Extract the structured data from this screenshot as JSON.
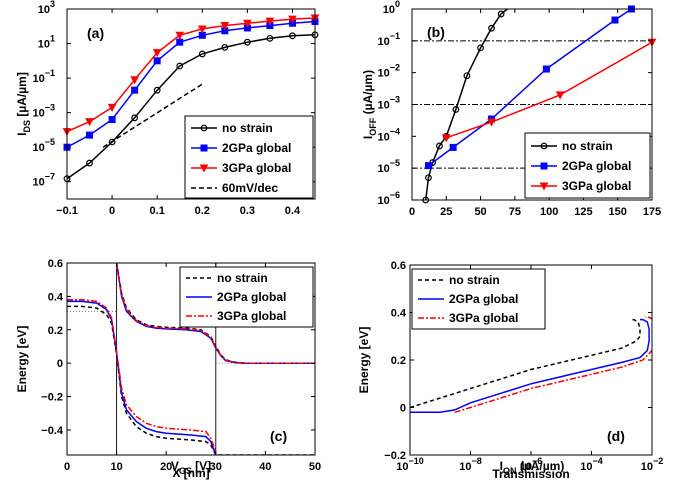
{
  "chart_data": [
    {
      "panel": "(a)",
      "type": "line",
      "xlabel": "V_GS [V]",
      "ylabel": "I_DS [µA/µm]",
      "xscale": "linear",
      "yscale": "log",
      "xlim": [
        -0.1,
        0.45
      ],
      "ylim": [
        1e-08,
        1000
      ],
      "xticks": [
        -0.1,
        0,
        0.1,
        0.2,
        0.3,
        0.4
      ],
      "xtick_labels": [
        "−0.1",
        "0",
        "0.1",
        "0.2",
        "0.3",
        "0.4"
      ],
      "yticks": [
        1e-07,
        1e-05,
        0.001,
        0.1,
        10,
        1000
      ],
      "ytick_labels": [
        [
          "10",
          "−7"
        ],
        [
          "10",
          "−5"
        ],
        [
          "10",
          "−3"
        ],
        [
          "10",
          "−1"
        ],
        [
          "10",
          "1"
        ],
        [
          "10",
          "3"
        ]
      ],
      "legend": "bottom-right",
      "series": [
        {
          "name": "no strain",
          "color": "#000000",
          "marker": "circle",
          "dash": "",
          "x": [
            -0.1,
            -0.05,
            0,
            0.05,
            0.1,
            0.15,
            0.2,
            0.25,
            0.3,
            0.35,
            0.4,
            0.45
          ],
          "y": [
            1.5e-07,
            1.2e-06,
            2e-05,
            0.0005,
            0.02,
            0.5,
            2.5,
            6,
            12,
            20,
            28,
            32
          ]
        },
        {
          "name": "2GPa global",
          "color": "#0000ff",
          "marker": "square",
          "dash": "",
          "x": [
            -0.1,
            -0.05,
            0,
            0.05,
            0.1,
            0.15,
            0.2,
            0.25,
            0.3,
            0.35,
            0.4,
            0.45
          ],
          "y": [
            1e-05,
            5e-05,
            0.0004,
            0.02,
            1,
            12,
            30,
            55,
            80,
            110,
            150,
            190
          ]
        },
        {
          "name": "3GPa global",
          "color": "#ff0000",
          "marker": "triangle-down",
          "dash": "",
          "x": [
            -0.1,
            -0.05,
            0,
            0.05,
            0.1,
            0.15,
            0.2,
            0.25,
            0.3,
            0.35,
            0.4,
            0.45
          ],
          "y": [
            8e-05,
            0.0003,
            0.002,
            0.08,
            3,
            30,
            70,
            110,
            150,
            200,
            260,
            300
          ]
        },
        {
          "name": "60mV/dec",
          "color": "#000000",
          "marker": "",
          "dash": "5,3",
          "x": [
            -0.02,
            0.2
          ],
          "y": [
            1e-05,
            0.045
          ]
        }
      ]
    },
    {
      "panel": "(b)",
      "type": "line",
      "xlabel": "I_ON (µA/µm)",
      "ylabel": "I_OFF (µA/µm)",
      "xscale": "linear",
      "yscale": "log",
      "xlim": [
        0,
        175
      ],
      "ylim": [
        1e-06,
        1
      ],
      "xticks": [
        0,
        25,
        50,
        75,
        100,
        125,
        150,
        175
      ],
      "xtick_labels": [
        "0",
        "25",
        "50",
        "75",
        "100",
        "125",
        "150",
        "175"
      ],
      "yticks": [
        1e-06,
        1e-05,
        0.0001,
        0.001,
        0.01,
        0.1,
        1
      ],
      "ytick_labels": [
        [
          "10",
          "−6"
        ],
        [
          "10",
          "−5"
        ],
        [
          "10",
          "−4"
        ],
        [
          "10",
          "−3"
        ],
        [
          "10",
          "−2"
        ],
        [
          "10",
          "−1"
        ],
        [
          "10",
          "0"
        ]
      ],
      "legend": "bottom-right",
      "reference_lines": [
        1e-05,
        0.001,
        0.1
      ],
      "series": [
        {
          "name": "no strain",
          "color": "#000000",
          "marker": "circle",
          "dash": "",
          "x": [
            10,
            12,
            15,
            20,
            25,
            32,
            40,
            50,
            58,
            65,
            75
          ],
          "y": [
            1e-06,
            5e-06,
            1.5e-05,
            5e-05,
            0.0001,
            0.0007,
            0.008,
            0.06,
            0.25,
            0.7,
            1.5
          ]
        },
        {
          "name": "2GPa global",
          "color": "#0000ff",
          "marker": "square",
          "dash": "",
          "x": [
            12,
            30,
            58,
            98,
            148,
            160
          ],
          "y": [
            1.2e-05,
            4.5e-05,
            0.00035,
            0.013,
            0.45,
            1
          ]
        },
        {
          "name": "3GPa global",
          "color": "#ff0000",
          "marker": "triangle-down",
          "dash": "",
          "x": [
            25,
            58,
            108,
            175
          ],
          "y": [
            9e-05,
            0.00028,
            0.002,
            0.09
          ]
        }
      ]
    },
    {
      "panel": "(c)",
      "type": "line",
      "xlabel": "X [nm]",
      "ylabel": "Energy [eV]",
      "xscale": "linear",
      "yscale": "linear",
      "xlim": [
        0,
        50
      ],
      "ylim": [
        -0.55,
        0.6
      ],
      "xticks": [
        0,
        10,
        20,
        30,
        40,
        50
      ],
      "xtick_labels": [
        "0",
        "10",
        "20",
        "30",
        "40",
        "50"
      ],
      "yticks": [
        -0.4,
        -0.2,
        0,
        0.2,
        0.4,
        0.6
      ],
      "ytick_labels": [
        [
          "−0.4"
        ],
        [
          "−0.2"
        ],
        [
          "0"
        ],
        [
          "0.2"
        ],
        [
          "0.4"
        ],
        [
          "0.6"
        ]
      ],
      "legend": "top-right",
      "vertical_lines": [
        10,
        30
      ],
      "reference_segments": [
        {
          "x": [
            0,
            10
          ],
          "y": [
            0.31,
            0.31
          ]
        },
        {
          "x": [
            30,
            50
          ],
          "y": [
            0,
            0
          ]
        }
      ],
      "series": [
        {
          "name": "no strain",
          "color": "#000000",
          "marker": "",
          "dash": "4,3",
          "x": [
            0,
            3,
            6,
            8,
            9,
            10,
            11,
            12,
            14,
            16,
            18,
            20,
            25,
            28,
            29,
            30,
            31,
            32,
            34,
            36,
            40,
            50
          ],
          "y": [
            0.34,
            0.34,
            0.33,
            0.29,
            0.24,
            0.05,
            -0.2,
            -0.3,
            -0.38,
            -0.42,
            -0.44,
            -0.45,
            -0.46,
            -0.47,
            -0.49,
            -0.55,
            -0.55,
            -0.55,
            -0.55,
            -0.55,
            -0.55,
            -0.55
          ]
        },
        {
          "name": "2GPa global",
          "color": "#0000ff",
          "marker": "",
          "dash": "",
          "x": [
            0,
            3,
            6,
            8,
            9,
            10,
            11,
            12,
            14,
            16,
            18,
            20,
            25,
            28,
            29,
            30
          ],
          "y": [
            0.37,
            0.37,
            0.36,
            0.32,
            0.26,
            0.06,
            -0.18,
            -0.28,
            -0.35,
            -0.39,
            -0.41,
            -0.42,
            -0.43,
            -0.44,
            -0.47,
            -0.55
          ]
        },
        {
          "name": "3GPa global",
          "color": "#ff0000",
          "marker": "",
          "dash": "6,2,2,2",
          "x": [
            0,
            3,
            6,
            8,
            9,
            10,
            11,
            12,
            14,
            16,
            18,
            20,
            25,
            28,
            29,
            30
          ],
          "y": [
            0.38,
            0.38,
            0.37,
            0.33,
            0.27,
            0.07,
            -0.15,
            -0.25,
            -0.32,
            -0.36,
            -0.38,
            -0.39,
            -0.4,
            -0.41,
            -0.45,
            -0.53
          ]
        },
        {
          "name": "",
          "color": "#000000",
          "marker": "",
          "dash": "4,3",
          "x": [
            10,
            11,
            12,
            14,
            16,
            18,
            20,
            24,
            27,
            29,
            30,
            31,
            32,
            34,
            36,
            40,
            50
          ],
          "y": [
            0.6,
            0.42,
            0.33,
            0.26,
            0.23,
            0.22,
            0.215,
            0.21,
            0.2,
            0.16,
            0.1,
            0.05,
            0.02,
            0.005,
            0,
            0,
            0
          ]
        },
        {
          "name": "",
          "color": "#0000ff",
          "marker": "",
          "dash": "",
          "x": [
            10,
            11,
            12,
            14,
            16,
            18,
            20,
            24,
            27,
            29,
            30,
            31,
            32,
            34,
            36,
            40,
            50
          ],
          "y": [
            0.6,
            0.4,
            0.31,
            0.25,
            0.22,
            0.21,
            0.205,
            0.2,
            0.19,
            0.15,
            0.09,
            0.045,
            0.015,
            0.003,
            0,
            0,
            0
          ]
        },
        {
          "name": "",
          "color": "#ff0000",
          "marker": "",
          "dash": "6,2,2,2",
          "x": [
            10,
            11,
            12,
            14,
            16,
            18,
            20,
            24,
            27,
            29,
            30,
            31,
            32,
            34,
            36,
            40,
            50
          ],
          "y": [
            0.6,
            0.41,
            0.32,
            0.255,
            0.225,
            0.215,
            0.21,
            0.205,
            0.195,
            0.155,
            0.095,
            0.048,
            0.017,
            0.004,
            0,
            0,
            0
          ]
        }
      ]
    },
    {
      "panel": "(d)",
      "type": "line",
      "xlabel": "Transmission",
      "ylabel": "Energy [eV]",
      "xscale": "log",
      "yscale": "linear",
      "xlim": [
        1e-10,
        0.01
      ],
      "ylim": [
        -0.2,
        0.6
      ],
      "xticks": [
        1e-10,
        1e-08,
        1e-06,
        0.0001,
        0.01
      ],
      "xtick_labels": [
        [
          "10",
          "−10"
        ],
        [
          "10",
          "−8"
        ],
        [
          "10",
          "−6"
        ],
        [
          "10",
          "−4"
        ],
        [
          "10",
          "−2"
        ]
      ],
      "yticks": [
        -0.2,
        0,
        0.2,
        0.4,
        0.6
      ],
      "ytick_labels": [
        [
          "−0.2"
        ],
        [
          "0"
        ],
        [
          "0.2"
        ],
        [
          "0.4"
        ],
        [
          "0.6"
        ]
      ],
      "legend": "top-left",
      "series": [
        {
          "name": "no strain",
          "color": "#000000",
          "marker": "",
          "dash": "4,3",
          "x": [
            1e-10,
            1e-09,
            1e-08,
            1e-07,
            1e-06,
            1e-05,
            0.0001,
            0.001,
            0.003,
            0.004,
            0.004,
            0.0035,
            0.0025,
            0.002
          ],
          "y": [
            0,
            0.04,
            0.08,
            0.12,
            0.16,
            0.19,
            0.22,
            0.25,
            0.28,
            0.3,
            0.33,
            0.36,
            0.37,
            0.37
          ]
        },
        {
          "name": "2GPa global",
          "color": "#0000ff",
          "marker": "",
          "dash": "",
          "x": [
            1e-10,
            1e-09,
            3e-09,
            1e-08,
            1e-07,
            1e-06,
            1e-05,
            0.0001,
            0.001,
            0.004,
            0.007,
            0.008,
            0.008,
            0.007,
            0.005,
            0.004
          ],
          "y": [
            -0.02,
            -0.02,
            -0.01,
            0.02,
            0.06,
            0.1,
            0.13,
            0.16,
            0.19,
            0.21,
            0.24,
            0.28,
            0.33,
            0.36,
            0.37,
            0.37
          ]
        },
        {
          "name": "3GPa global",
          "color": "#ff0000",
          "marker": "",
          "dash": "6,2,2,2",
          "x": [
            3e-09,
            1e-08,
            1e-07,
            1e-06,
            1e-05,
            0.0001,
            0.001,
            0.005,
            0.01,
            0.012,
            0.012,
            0.011,
            0.008,
            0.006
          ],
          "y": [
            -0.02,
            0,
            0.04,
            0.08,
            0.11,
            0.14,
            0.17,
            0.2,
            0.24,
            0.28,
            0.34,
            0.37,
            0.38,
            0.38
          ]
        }
      ]
    }
  ]
}
